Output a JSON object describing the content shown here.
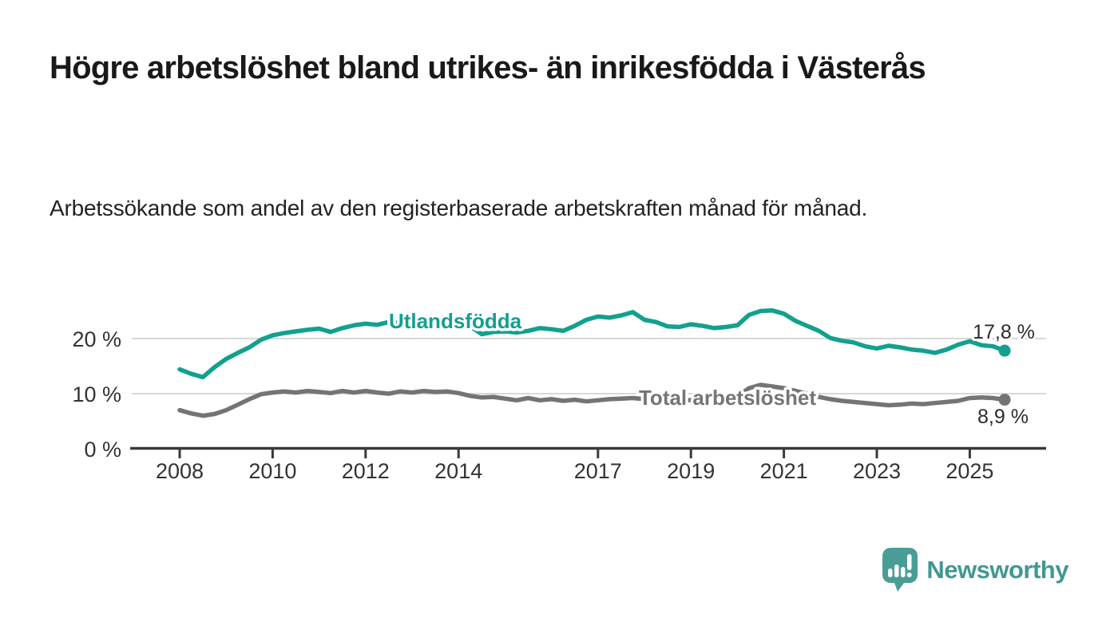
{
  "title": "Högre arbetslöshet bland utrikes- än inrikesfödda i Västerås",
  "subtitle": "Arbetssökande som andel av den registerbaserade arbetskraften månad för månad.",
  "branding": {
    "wordmark": "Newsworthy",
    "logo_icon": "newsworthy-speech-bubble-bar-chart-icon",
    "brand_color": "#419892"
  },
  "colors": {
    "foreign_born_line": "#12a08f",
    "total_line": "#747474",
    "gridline": "#d8d8d8",
    "axis": "#3a3a3a"
  },
  "chart_data": {
    "type": "line",
    "title": "Högre arbetslöshet bland utrikes- än inrikesfödda i Västerås",
    "subtitle": "Arbetssökande som andel av den registerbaserade arbetskraften månad för månad.",
    "xlabel": "",
    "ylabel": "",
    "grid": true,
    "legend_position": "inline-labels",
    "x_axis": {
      "ticks": [
        2008,
        2010,
        2012,
        2014,
        2017,
        2019,
        2021,
        2023,
        2025
      ],
      "range": [
        2008,
        2025.75
      ]
    },
    "y_axis": {
      "ticks": [
        {
          "label": "0 %",
          "value": 0
        },
        {
          "label": "10 %",
          "value": 10
        },
        {
          "label": "20 %",
          "value": 20
        }
      ],
      "range": [
        0,
        26
      ]
    },
    "x": [
      2008.0,
      2008.25,
      2008.5,
      2008.75,
      2009.0,
      2009.25,
      2009.5,
      2009.75,
      2010.0,
      2010.25,
      2010.5,
      2010.75,
      2011.0,
      2011.25,
      2011.5,
      2011.75,
      2012.0,
      2012.25,
      2012.5,
      2012.75,
      2013.0,
      2013.25,
      2013.5,
      2013.75,
      2014.0,
      2014.25,
      2014.5,
      2014.75,
      2015.0,
      2015.25,
      2015.5,
      2015.75,
      2016.0,
      2016.25,
      2016.5,
      2016.75,
      2017.0,
      2017.25,
      2017.5,
      2017.75,
      2018.0,
      2018.25,
      2018.5,
      2018.75,
      2019.0,
      2019.25,
      2019.5,
      2019.75,
      2020.0,
      2020.25,
      2020.5,
      2020.75,
      2021.0,
      2021.25,
      2021.5,
      2021.75,
      2022.0,
      2022.25,
      2022.5,
      2022.75,
      2023.0,
      2023.25,
      2023.5,
      2023.75,
      2024.0,
      2024.25,
      2024.5,
      2024.75,
      2025.0,
      2025.25,
      2025.5,
      2025.75
    ],
    "series": [
      {
        "name": "Utlandsfödda",
        "color": "#12a08f",
        "end_label": "17,8 %",
        "end_value": 17.8,
        "values": [
          14.4,
          13.6,
          13.0,
          14.8,
          16.3,
          17.4,
          18.4,
          19.8,
          20.6,
          21.0,
          21.3,
          21.6,
          21.8,
          21.2,
          21.9,
          22.4,
          22.7,
          22.5,
          23.0,
          22.8,
          23.2,
          23.0,
          23.4,
          23.6,
          23.8,
          22.2,
          20.8,
          21.2,
          21.3,
          21.1,
          21.4,
          21.9,
          21.7,
          21.4,
          22.3,
          23.4,
          24.0,
          23.8,
          24.2,
          24.8,
          23.4,
          23.0,
          22.2,
          22.1,
          22.6,
          22.3,
          21.9,
          22.1,
          22.4,
          24.3,
          25.0,
          25.1,
          24.5,
          23.2,
          22.3,
          21.4,
          20.1,
          19.6,
          19.3,
          18.6,
          18.2,
          18.7,
          18.4,
          18.0,
          17.8,
          17.4,
          18.0,
          18.9,
          19.5,
          18.8,
          18.6,
          17.8
        ]
      },
      {
        "name": "Total arbetslöshet",
        "color": "#747474",
        "end_label": "8,9 %",
        "end_value": 8.9,
        "values": [
          7.0,
          6.4,
          6.0,
          6.3,
          7.0,
          8.0,
          9.0,
          9.9,
          10.2,
          10.4,
          10.2,
          10.5,
          10.3,
          10.1,
          10.5,
          10.2,
          10.5,
          10.2,
          10.0,
          10.4,
          10.2,
          10.5,
          10.3,
          10.4,
          10.1,
          9.6,
          9.3,
          9.4,
          9.1,
          8.8,
          9.2,
          8.8,
          9.0,
          8.7,
          8.9,
          8.6,
          8.8,
          9.0,
          9.1,
          9.2,
          9.0,
          8.9,
          8.8,
          8.9,
          8.8,
          8.9,
          9.0,
          9.2,
          9.5,
          11.0,
          11.6,
          11.3,
          11.0,
          10.5,
          10.0,
          9.4,
          9.0,
          8.7,
          8.5,
          8.3,
          8.1,
          7.9,
          8.0,
          8.2,
          8.1,
          8.3,
          8.5,
          8.7,
          9.2,
          9.3,
          9.2,
          8.9
        ]
      }
    ]
  }
}
